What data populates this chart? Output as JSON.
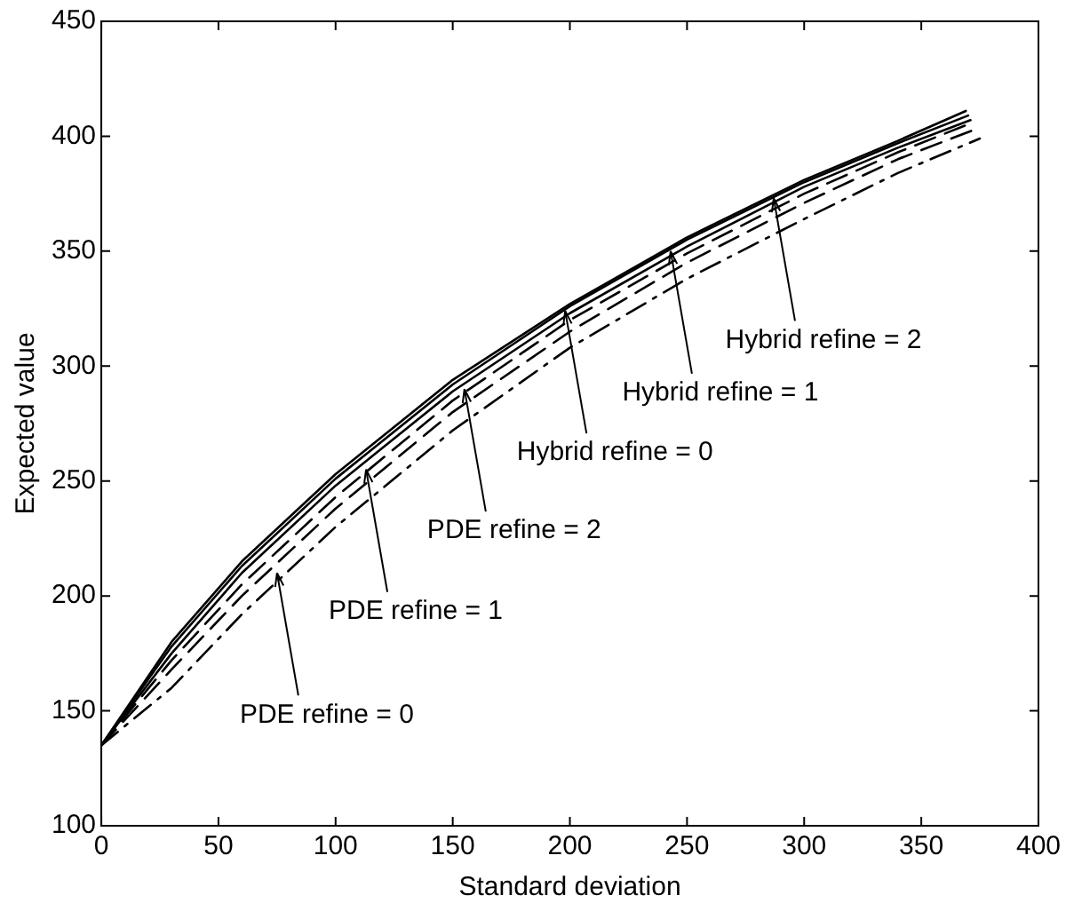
{
  "chart_data": {
    "type": "line",
    "xlabel": "Standard deviation",
    "ylabel": "Expected value",
    "xlim": [
      0,
      400
    ],
    "xticks": [
      0,
      50,
      100,
      150,
      200,
      250,
      300,
      350,
      400
    ],
    "ylim": [
      100,
      450
    ],
    "yticks": [
      100,
      150,
      200,
      250,
      300,
      350,
      400,
      450
    ],
    "grid": false,
    "legend": false,
    "marker": "none",
    "series": [
      {
        "color": "#000000",
        "line_style": "solid",
        "x": [
          0,
          30,
          60,
          100,
          150,
          200,
          250,
          300,
          340,
          369
        ],
        "values": [
          135,
          180,
          215,
          253,
          294,
          327,
          356,
          381,
          398,
          411
        ]
      },
      {
        "color": "#000000",
        "line_style": "solid",
        "x": [
          0,
          30,
          60,
          100,
          150,
          200,
          250,
          300,
          340,
          370
        ],
        "values": [
          135,
          178,
          213,
          251,
          292,
          326,
          355,
          380,
          397,
          409
        ]
      },
      {
        "color": "#000000",
        "line_style": "solid",
        "x": [
          0,
          30,
          60,
          100,
          150,
          200,
          250,
          300,
          340,
          371
        ],
        "values": [
          135,
          175,
          210,
          248,
          289,
          323,
          352,
          378,
          395,
          407
        ]
      },
      {
        "color": "#000000",
        "line_style": "dashed",
        "x": [
          0,
          30,
          60,
          100,
          150,
          200,
          250,
          300,
          340,
          372
        ],
        "values": [
          135,
          172,
          205,
          243,
          285,
          320,
          349,
          375,
          393,
          406
        ]
      },
      {
        "color": "#000000",
        "line_style": "dashed",
        "x": [
          0,
          30,
          60,
          100,
          150,
          200,
          250,
          300,
          340,
          373
        ],
        "values": [
          135,
          168,
          200,
          238,
          280,
          315,
          345,
          371,
          390,
          403
        ]
      },
      {
        "color": "#000000",
        "line_style": "dashdot",
        "x": [
          0,
          30,
          60,
          100,
          150,
          200,
          250,
          300,
          340,
          375
        ],
        "values": [
          135,
          160,
          192,
          230,
          272,
          308,
          338,
          364,
          384,
          399
        ]
      }
    ],
    "annotations": [
      {
        "text": "PDE refine = 0",
        "x": 75,
        "y": 210
      },
      {
        "text": "PDE refine = 1",
        "x": 113,
        "y": 255
      },
      {
        "text": "PDE refine = 2",
        "x": 155,
        "y": 290
      },
      {
        "text": "Hybrid refine = 0",
        "x": 198,
        "y": 324
      },
      {
        "text": "Hybrid refine = 1",
        "x": 243,
        "y": 350
      },
      {
        "text": "Hybrid refine = 2",
        "x": 287,
        "y": 373
      }
    ]
  }
}
